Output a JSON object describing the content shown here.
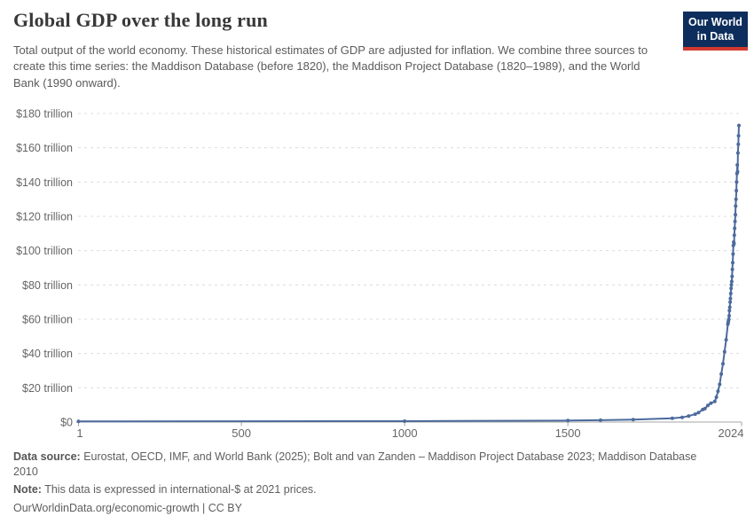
{
  "header": {
    "title": "Global GDP over the long run",
    "subtitle": "Total output of the world economy. These historical estimates of GDP are adjusted for inflation. We combine three sources to create this time series: the Maddison Database (before 1820), the Maddison Project Database (1820–1989), and the World Bank (1990 onward)."
  },
  "logo": {
    "line1": "Our World",
    "line2": "in Data",
    "bg_color": "#0d2e5c",
    "accent_color": "#d13830"
  },
  "chart_data": {
    "type": "line",
    "title": "Global GDP over the long run",
    "xlabel": "",
    "ylabel": "",
    "x_range": [
      1,
      2024
    ],
    "y_range": [
      0,
      180
    ],
    "grid": "dashed-horizontal",
    "legend": "none",
    "line_color": "#4C6A9C",
    "grid_color": "#dcdcdc",
    "axis_color": "#a5a5a5",
    "tick_text_color": "#666666",
    "y_ticks": [
      {
        "value": 0,
        "label": "$0"
      },
      {
        "value": 20,
        "label": "$20 trillion"
      },
      {
        "value": 40,
        "label": "$40 trillion"
      },
      {
        "value": 60,
        "label": "$60 trillion"
      },
      {
        "value": 80,
        "label": "$80 trillion"
      },
      {
        "value": 100,
        "label": "$100 trillion"
      },
      {
        "value": 120,
        "label": "$120 trillion"
      },
      {
        "value": 140,
        "label": "$140 trillion"
      },
      {
        "value": 160,
        "label": "$160 trillion"
      },
      {
        "value": 180,
        "label": "$180 trillion"
      }
    ],
    "x_ticks": [
      {
        "value": 1,
        "label": "1"
      },
      {
        "value": 500,
        "label": "500"
      },
      {
        "value": 1000,
        "label": "1000"
      },
      {
        "value": 1500,
        "label": "1500"
      },
      {
        "value": 2024,
        "label": "2024"
      }
    ],
    "unit": "trillion international-$ at 2021 prices",
    "points": [
      [
        1,
        0.35
      ],
      [
        1000,
        0.5
      ],
      [
        1500,
        0.9
      ],
      [
        1600,
        1.1
      ],
      [
        1700,
        1.4
      ],
      [
        1820,
        2.2
      ],
      [
        1850,
        2.7
      ],
      [
        1870,
        3.5
      ],
      [
        1890,
        4.6
      ],
      [
        1900,
        5.5
      ],
      [
        1913,
        7.3
      ],
      [
        1920,
        7.8
      ],
      [
        1929,
        9.7
      ],
      [
        1938,
        11
      ],
      [
        1950,
        12
      ],
      [
        1955,
        14.5
      ],
      [
        1960,
        18
      ],
      [
        1965,
        22
      ],
      [
        1970,
        28
      ],
      [
        1975,
        34
      ],
      [
        1980,
        41
      ],
      [
        1985,
        48
      ],
      [
        1990,
        57
      ],
      [
        1991,
        58
      ],
      [
        1992,
        59
      ],
      [
        1993,
        60
      ],
      [
        1994,
        62
      ],
      [
        1995,
        65
      ],
      [
        1996,
        67
      ],
      [
        1997,
        70
      ],
      [
        1998,
        72
      ],
      [
        1999,
        75
      ],
      [
        2000,
        78
      ],
      [
        2001,
        80
      ],
      [
        2002,
        82
      ],
      [
        2003,
        85
      ],
      [
        2004,
        89
      ],
      [
        2005,
        93
      ],
      [
        2006,
        98
      ],
      [
        2007,
        103
      ],
      [
        2008,
        105
      ],
      [
        2009,
        104
      ],
      [
        2010,
        109
      ],
      [
        2011,
        113
      ],
      [
        2012,
        117
      ],
      [
        2013,
        121
      ],
      [
        2014,
        126
      ],
      [
        2015,
        130
      ],
      [
        2016,
        135
      ],
      [
        2017,
        140
      ],
      [
        2018,
        145
      ],
      [
        2019,
        150
      ],
      [
        2020,
        146
      ],
      [
        2021,
        157
      ],
      [
        2022,
        162
      ],
      [
        2023,
        167
      ],
      [
        2024,
        173
      ]
    ]
  },
  "footer": {
    "data_source_label": "Data source:",
    "data_source_text": " Eurostat, OECD, IMF, and World Bank (2025); Bolt and van Zanden – Maddison Project Database 2023; Maddison Database 2010",
    "note_label": "Note:",
    "note_text": " This data is expressed in international-$ at 2021 prices.",
    "citation": "OurWorldinData.org/economic-growth | CC BY"
  }
}
